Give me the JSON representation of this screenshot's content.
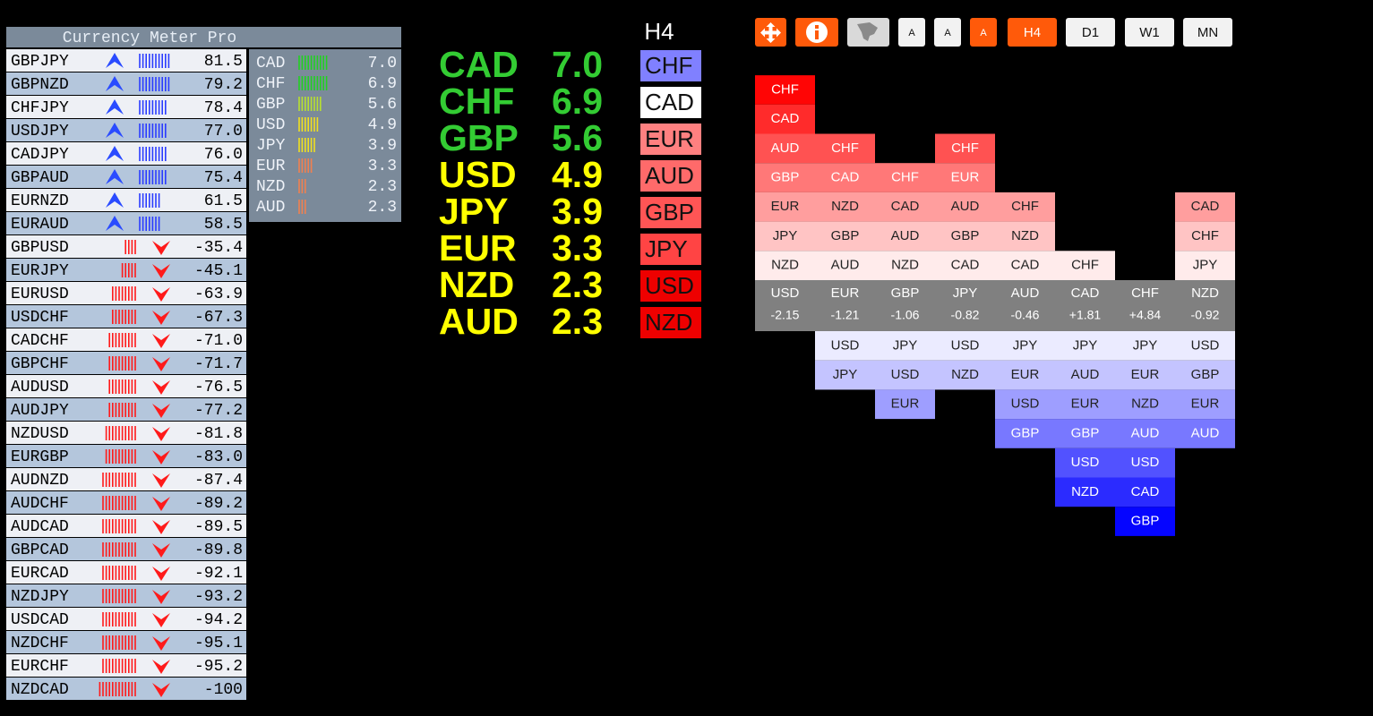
{
  "meter": {
    "title": "Currency Meter Pro",
    "pairs": [
      {
        "pair": "GBPJPY",
        "value": "81.5"
      },
      {
        "pair": "GBPNZD",
        "value": "79.2"
      },
      {
        "pair": "CHFJPY",
        "value": "78.4"
      },
      {
        "pair": "USDJPY",
        "value": "77.0"
      },
      {
        "pair": "CADJPY",
        "value": "76.0"
      },
      {
        "pair": "GBPAUD",
        "value": "75.4"
      },
      {
        "pair": "EURNZD",
        "value": "61.5"
      },
      {
        "pair": "EURAUD",
        "value": "58.5"
      },
      {
        "pair": "GBPUSD",
        "value": "-35.4"
      },
      {
        "pair": "EURJPY",
        "value": "-45.1"
      },
      {
        "pair": "EURUSD",
        "value": "-63.9"
      },
      {
        "pair": "USDCHF",
        "value": "-67.3"
      },
      {
        "pair": "CADCHF",
        "value": "-71.0"
      },
      {
        "pair": "GBPCHF",
        "value": "-71.7"
      },
      {
        "pair": "AUDUSD",
        "value": "-76.5"
      },
      {
        "pair": "AUDJPY",
        "value": "-77.2"
      },
      {
        "pair": "NZDUSD",
        "value": "-81.8"
      },
      {
        "pair": "EURGBP",
        "value": "-83.0"
      },
      {
        "pair": "AUDNZD",
        "value": "-87.4"
      },
      {
        "pair": "AUDCHF",
        "value": "-89.2"
      },
      {
        "pair": "AUDCAD",
        "value": "-89.5"
      },
      {
        "pair": "GBPCAD",
        "value": "-89.8"
      },
      {
        "pair": "EURCAD",
        "value": "-92.1"
      },
      {
        "pair": "NZDJPY",
        "value": "-93.2"
      },
      {
        "pair": "USDCAD",
        "value": "-94.2"
      },
      {
        "pair": "NZDCHF",
        "value": "-95.1"
      },
      {
        "pair": "EURCHF",
        "value": "-95.2"
      },
      {
        "pair": "NZDCAD",
        "value": "-100"
      }
    ]
  },
  "strength": [
    {
      "currency": "CAD",
      "value": "7.0"
    },
    {
      "currency": "CHF",
      "value": "6.9"
    },
    {
      "currency": "GBP",
      "value": "5.6"
    },
    {
      "currency": "USD",
      "value": "4.9"
    },
    {
      "currency": "JPY",
      "value": "3.9"
    },
    {
      "currency": "EUR",
      "value": "3.3"
    },
    {
      "currency": "NZD",
      "value": "2.3"
    },
    {
      "currency": "AUD",
      "value": "2.3"
    }
  ],
  "timeframe_column": {
    "label": "H4",
    "currencies": [
      "CHF",
      "CAD",
      "EUR",
      "AUD",
      "GBP",
      "JPY",
      "USD",
      "NZD"
    ]
  },
  "toolbar": {
    "buttons": [
      {
        "label": "A",
        "active": false
      },
      {
        "label": "A",
        "active": false
      },
      {
        "label": "A",
        "active": true
      },
      {
        "label": "H4",
        "active": true
      },
      {
        "label": "D1",
        "active": false
      },
      {
        "label": "W1",
        "active": false
      },
      {
        "label": "MN",
        "active": false
      }
    ]
  },
  "matrix": {
    "columns": [
      {
        "currency": "USD",
        "value": "-2.15",
        "above": [
          "CHF",
          "CAD",
          "AUD",
          "GBP",
          "EUR",
          "JPY",
          "NZD"
        ],
        "below": []
      },
      {
        "currency": "EUR",
        "value": "-1.21",
        "above": [
          "CHF",
          "CAD",
          "NZD",
          "GBP",
          "AUD"
        ],
        "below": [
          "USD",
          "JPY"
        ]
      },
      {
        "currency": "GBP",
        "value": "-1.06",
        "above": [
          "CHF",
          "CAD",
          "AUD",
          "NZD"
        ],
        "below": [
          "JPY",
          "USD",
          "EUR"
        ]
      },
      {
        "currency": "JPY",
        "value": "-0.82",
        "above": [
          "CHF",
          "EUR",
          "AUD",
          "GBP",
          "CAD"
        ],
        "below": [
          "USD",
          "NZD"
        ]
      },
      {
        "currency": "AUD",
        "value": "-0.46",
        "above": [
          "CHF",
          "NZD",
          "CAD"
        ],
        "below": [
          "JPY",
          "EUR",
          "USD",
          "GBP"
        ]
      },
      {
        "currency": "CAD",
        "value": "+1.81",
        "above": [
          "CHF"
        ],
        "below": [
          "JPY",
          "AUD",
          "EUR",
          "GBP",
          "USD",
          "NZD"
        ]
      },
      {
        "currency": "CHF",
        "value": "+4.84",
        "above": [],
        "below": [
          "JPY",
          "EUR",
          "NZD",
          "AUD",
          "USD",
          "CAD",
          "GBP"
        ]
      },
      {
        "currency": "NZD",
        "value": "-0.92",
        "above": [
          "CAD",
          "CHF",
          "JPY"
        ],
        "below": [
          "USD",
          "GBP",
          "EUR",
          "AUD"
        ]
      }
    ]
  }
}
